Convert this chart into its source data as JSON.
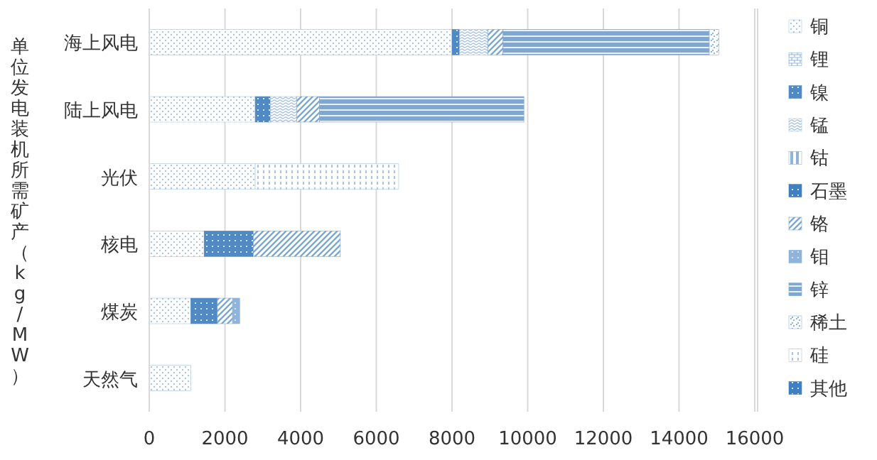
{
  "chart_data": {
    "type": "bar",
    "orientation": "horizontal",
    "stacked": true,
    "ylabel": "单位发电装机所需矿产（kg/MW）",
    "categories": [
      "海上风电",
      "陆上风电",
      "光伏",
      "核电",
      "煤炭",
      "天然气"
    ],
    "series": [
      {
        "name": "铜",
        "color": "#a9c4e2",
        "values": [
          8000,
          2800,
          2800,
          1450,
          1100,
          1100
        ]
      },
      {
        "name": "锂",
        "color": "#8fb4dc",
        "values": [
          null,
          null,
          null,
          null,
          null,
          null
        ]
      },
      {
        "name": "镍",
        "color": "#4f8ac6",
        "values": [
          200,
          400,
          null,
          1300,
          700,
          null
        ]
      },
      {
        "name": "锰",
        "color": "#a9c4e2",
        "values": [
          750,
          700,
          null,
          null,
          null,
          null
        ]
      },
      {
        "name": "钴",
        "color": "#8fb4dc",
        "values": [
          null,
          null,
          null,
          null,
          null,
          null
        ]
      },
      {
        "name": "石墨",
        "color": "#3f7fc4",
        "values": [
          null,
          null,
          null,
          null,
          null,
          null
        ]
      },
      {
        "name": "铬",
        "color": "#7fa7d0",
        "values": [
          400,
          600,
          null,
          2300,
          400,
          null
        ]
      },
      {
        "name": "钼",
        "color": "#8fb4dc",
        "values": [
          null,
          null,
          null,
          null,
          190,
          null
        ]
      },
      {
        "name": "锌",
        "color": "#7fa7d0",
        "values": [
          5450,
          5400,
          null,
          null,
          null,
          null
        ]
      },
      {
        "name": "稀土",
        "color": "#8fb4dc",
        "values": [
          250,
          null,
          null,
          null,
          null,
          null
        ]
      },
      {
        "name": "硅",
        "color": "#a9c4e2",
        "values": [
          null,
          null,
          3790,
          null,
          null,
          null
        ]
      },
      {
        "name": "其他",
        "color": "#3f7fc4",
        "values": [
          null,
          null,
          null,
          null,
          null,
          null
        ]
      }
    ],
    "xlim": [
      0,
      16000
    ],
    "xticks": [
      0,
      2000,
      4000,
      6000,
      8000,
      10000,
      12000,
      14000,
      16000
    ],
    "grid": "x",
    "legend": "right"
  }
}
